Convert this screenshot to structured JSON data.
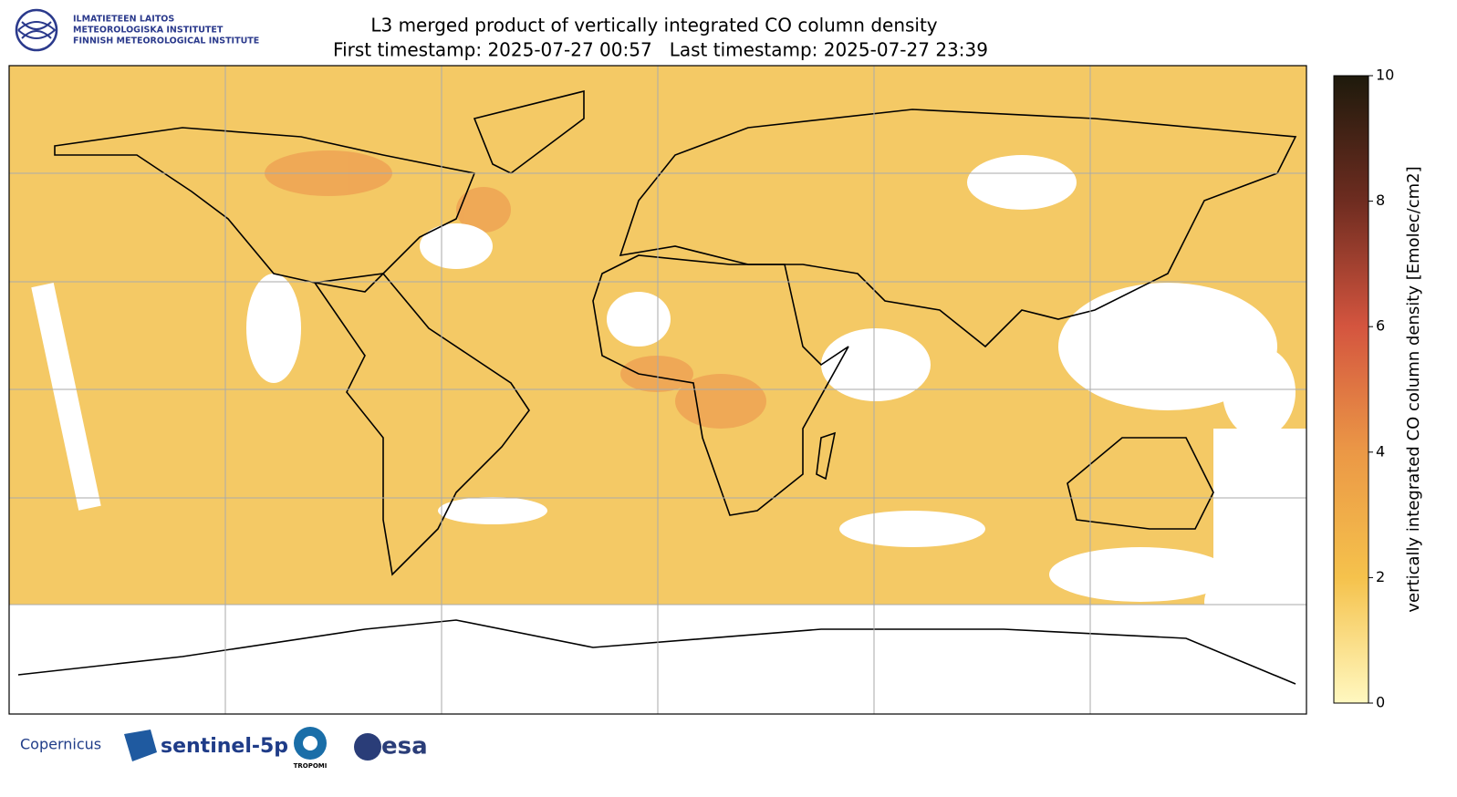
{
  "header": {
    "institute": [
      "ILMATIETEEN LAITOS",
      "METEOROLOGISKA INSTITUTET",
      "FINNISH METEOROLOGICAL INSTITUTE"
    ],
    "title": "L3 merged product of vertically integrated CO column density",
    "subtitle": "First timestamp: 2025-07-27 00:57   Last timestamp: 2025-07-27 23:39"
  },
  "colorbar": {
    "label": "vertically integrated CO column density [Emolec/cm2]",
    "lim": [
      0,
      10
    ],
    "ticks": [
      0,
      2,
      4,
      6,
      8,
      10
    ],
    "colors": [
      "#fff8c0",
      "#f5c24c",
      "#eb9846",
      "#d4553f",
      "#6e2c20",
      "#1e1a0c"
    ]
  },
  "footer": {
    "logos": [
      "Copernicus",
      "sentinel-5p",
      "TROPOMI",
      "esa"
    ]
  }
}
